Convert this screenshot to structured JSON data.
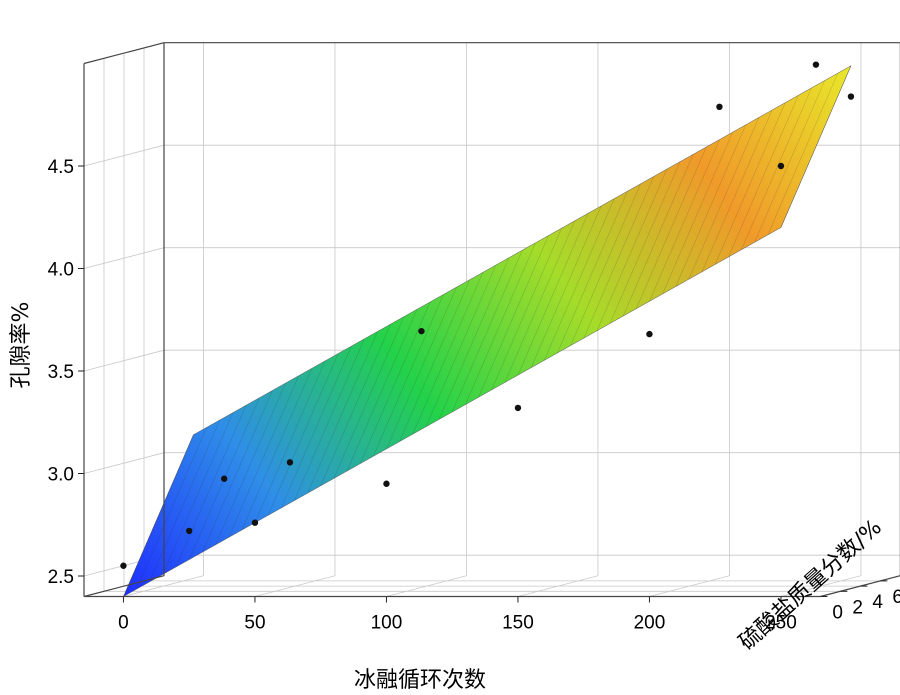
{
  "chart_data": {
    "type": "surface3d",
    "title": "",
    "xlabel": "冰融循环次数",
    "ylabel": "硫酸盐质量分数/%",
    "zlabel": "孔隙率%",
    "xlim": [
      -15,
      265
    ],
    "ylim": [
      0,
      8
    ],
    "zlim": [
      2.4,
      5.0
    ],
    "x_ticks": [
      0,
      50,
      100,
      150,
      200,
      250
    ],
    "y_ticks": [
      0,
      2,
      4,
      6
    ],
    "z_ticks": [
      2.5,
      3.0,
      3.5,
      4.0,
      4.5
    ],
    "z_tick_labels": [
      "2.5",
      "3.0",
      "3.5",
      "4.0",
      "4.5"
    ],
    "grid": true,
    "colormap": [
      "#1f2dff",
      "#2f8ee8",
      "#23d24a",
      "#a6dc2a",
      "#f09a2a",
      "#e8e82a"
    ],
    "surface": {
      "x_range": [
        0,
        250
      ],
      "y_range": [
        0,
        7
      ],
      "z_corners": {
        "x0_y0": 2.4,
        "x0_y7": 3.1,
        "x250_y0": 4.2,
        "x250_y7": 4.9
      }
    },
    "scatter": [
      {
        "x": 0,
        "y": 0,
        "z": 2.55
      },
      {
        "x": 25,
        "y": 0,
        "z": 2.72
      },
      {
        "x": 50,
        "y": 0,
        "z": 2.76
      },
      {
        "x": 100,
        "y": 0,
        "z": 2.95
      },
      {
        "x": 150,
        "y": 0,
        "z": 3.32
      },
      {
        "x": 200,
        "y": 0,
        "z": 3.68
      },
      {
        "x": 250,
        "y": 0,
        "z": 4.5
      },
      {
        "x": 25,
        "y": 3.5,
        "z": 2.93
      },
      {
        "x": 50,
        "y": 3.5,
        "z": 3.01
      },
      {
        "x": 100,
        "y": 3.5,
        "z": 3.65
      },
      {
        "x": 250,
        "y": 7,
        "z": 4.75
      },
      {
        "x": 200,
        "y": 7,
        "z": 4.7
      },
      {
        "x": 250,
        "y": 3.5,
        "z": 4.95
      }
    ]
  }
}
